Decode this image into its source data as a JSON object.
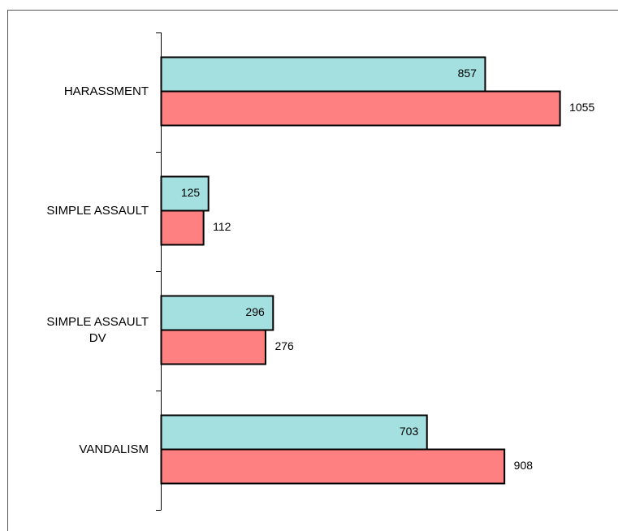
{
  "chart_data": {
    "type": "bar",
    "orientation": "horizontal",
    "title": "",
    "xlabel": "",
    "ylabel": "",
    "categories": [
      "HARASSMENT",
      "SIMPLE ASSAULT",
      "SIMPLE ASSAULT DV",
      "VANDALISM"
    ],
    "category_label_lines": [
      [
        "HARASSMENT"
      ],
      [
        "SIMPLE ASSAULT"
      ],
      [
        "SIMPLE ASSAULT",
        "DV"
      ],
      [
        "VANDALISM"
      ]
    ],
    "series": [
      {
        "values": [
          857,
          125,
          296,
          703
        ],
        "color": "#a4e0e0"
      },
      {
        "values": [
          1055,
          112,
          276,
          908
        ],
        "color": "#ff8080"
      }
    ],
    "xlim": [
      0,
      1200
    ],
    "grid": false,
    "legend": "none",
    "data_labels": true
  }
}
